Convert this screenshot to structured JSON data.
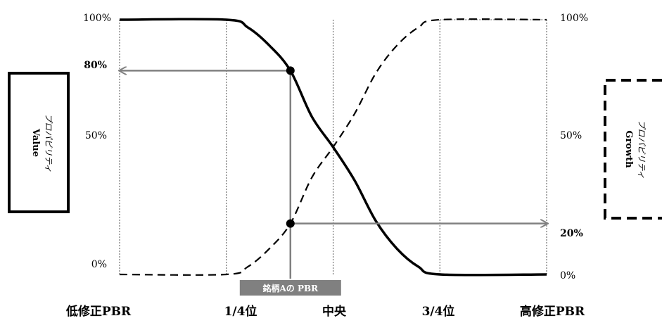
{
  "chart_data": {
    "type": "line",
    "y_left_ticks": [
      "100%",
      "80%",
      "50%",
      "0%"
    ],
    "y_right_ticks": [
      "100%",
      "50%",
      "20%",
      "0%"
    ],
    "x_labels": [
      "低修正PBR",
      "1/4位",
      "中央",
      "3/4位",
      "高修正PBR"
    ],
    "value_box": {
      "title": "Value",
      "subtitle": "プロパビリティ"
    },
    "growth_box": {
      "title": "Growth",
      "subtitle": "プロパビリティ"
    },
    "marker_label": "銘柄Aの PBR",
    "series": [
      {
        "style": "solid",
        "x": [
          0,
          0.25,
          0.3,
          0.35,
          0.4,
          0.45,
          0.5,
          0.55,
          0.6,
          0.65,
          0.7,
          0.75,
          1.0
        ],
        "y": [
          100,
          100,
          97,
          90,
          80,
          62,
          50,
          37,
          21,
          10,
          3,
          0,
          0
        ]
      },
      {
        "style": "dashed",
        "x": [
          0,
          0.25,
          0.3,
          0.35,
          0.4,
          0.45,
          0.5,
          0.55,
          0.6,
          0.65,
          0.7,
          0.75,
          1.0
        ],
        "y": [
          0,
          0,
          3,
          10,
          20,
          38,
          50,
          63,
          79,
          90,
          97,
          100,
          100
        ]
      }
    ],
    "highlight": {
      "x": 0.4,
      "value_y": 80,
      "growth_y": 20
    },
    "colors": {
      "curve": "#000000",
      "guide": "#808080",
      "grid": "#666666",
      "marker_fill": "#808080"
    }
  }
}
